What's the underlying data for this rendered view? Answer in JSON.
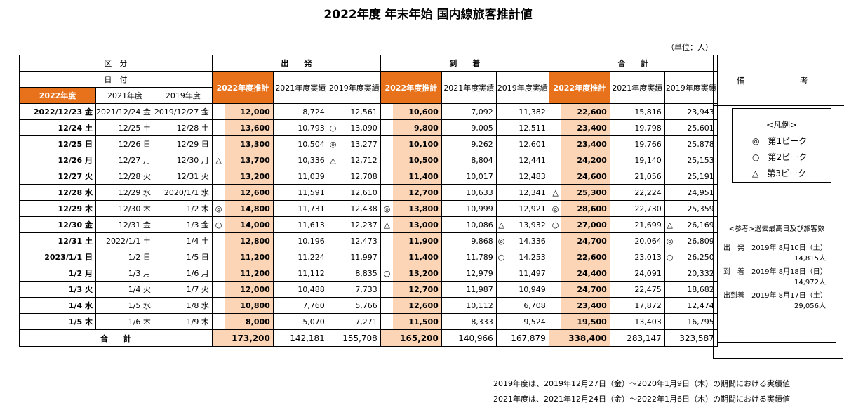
{
  "title": "2022年度 年末年始 国内線旅客推計値",
  "unit": "（単位：人）",
  "header": {
    "kubun": "区　分",
    "hiduke": "日　付",
    "col2022": "2022年度",
    "col2021": "2021年度",
    "col2019": "2019年度",
    "departure": "出　　発",
    "arrival": "到　　着",
    "total": "合　　計",
    "est2022": "2022年度推計",
    "act2021": "2021年度実績",
    "act2019": "2019年度実績",
    "remarks": "備　　考"
  },
  "rows": [
    {
      "d22": "2022/12/23 金",
      "d21": "2021/12/24 金",
      "d19": "2019/12/27 金",
      "m1": "",
      "dep22": "12,000",
      "dep21": "8,724",
      "m2": "",
      "dep19": "12,561",
      "m3": "",
      "arr22": "10,600",
      "arr21": "7,092",
      "m4": "",
      "arr19": "11,382",
      "m5": "",
      "tot22": "22,600",
      "tot21": "15,816",
      "m6": "",
      "tot19": "23,943"
    },
    {
      "d22": "12/24 土",
      "d21": "12/25 土",
      "d19": "12/28 土",
      "m1": "",
      "dep22": "13,600",
      "dep21": "10,793",
      "m2": "○",
      "dep19": "13,090",
      "m3": "",
      "arr22": "9,800",
      "arr21": "9,005",
      "m4": "",
      "arr19": "12,511",
      "m5": "",
      "tot22": "23,400",
      "tot21": "19,798",
      "m6": "",
      "tot19": "25,601"
    },
    {
      "d22": "12/25 日",
      "d21": "12/26 日",
      "d19": "12/29 日",
      "m1": "",
      "dep22": "13,300",
      "dep21": "10,504",
      "m2": "◎",
      "dep19": "13,277",
      "m3": "",
      "arr22": "10,100",
      "arr21": "9,262",
      "m4": "",
      "arr19": "12,601",
      "m5": "",
      "tot22": "23,400",
      "tot21": "19,766",
      "m6": "",
      "tot19": "25,878"
    },
    {
      "d22": "12/26 月",
      "d21": "12/27 月",
      "d19": "12/30 月",
      "m1": "△",
      "dep22": "13,700",
      "dep21": "10,336",
      "m2": "△",
      "dep19": "12,712",
      "m3": "",
      "arr22": "10,500",
      "arr21": "8,804",
      "m4": "",
      "arr19": "12,441",
      "m5": "",
      "tot22": "24,200",
      "tot21": "19,140",
      "m6": "",
      "tot19": "25,153"
    },
    {
      "d22": "12/27 火",
      "d21": "12/28 火",
      "d19": "12/31 火",
      "m1": "",
      "dep22": "13,200",
      "dep21": "11,039",
      "m2": "",
      "dep19": "12,708",
      "m3": "",
      "arr22": "11,400",
      "arr21": "10,017",
      "m4": "",
      "arr19": "12,483",
      "m5": "",
      "tot22": "24,600",
      "tot21": "21,056",
      "m6": "",
      "tot19": "25,191"
    },
    {
      "d22": "12/28 水",
      "d21": "12/29 水",
      "d19": "2020/1/1 水",
      "m1": "",
      "dep22": "12,600",
      "dep21": "11,591",
      "m2": "",
      "dep19": "12,610",
      "m3": "",
      "arr22": "12,700",
      "arr21": "10,633",
      "m4": "",
      "arr19": "12,341",
      "m5": "△",
      "tot22": "25,300",
      "tot21": "22,224",
      "m6": "",
      "tot19": "24,951"
    },
    {
      "d22": "12/29 木",
      "d21": "12/30 木",
      "d19": "1/2 木",
      "m1": "◎",
      "dep22": "14,800",
      "dep21": "11,731",
      "m2": "",
      "dep19": "12,438",
      "m3": "◎",
      "arr22": "13,800",
      "arr21": "10,999",
      "m4": "",
      "arr19": "12,921",
      "m5": "◎",
      "tot22": "28,600",
      "tot21": "22,730",
      "m6": "",
      "tot19": "25,359"
    },
    {
      "d22": "12/30 金",
      "d21": "12/31 金",
      "d19": "1/3 金",
      "m1": "○",
      "dep22": "14,000",
      "dep21": "11,613",
      "m2": "",
      "dep19": "12,237",
      "m3": "△",
      "arr22": "13,000",
      "arr21": "10,086",
      "m4": "△",
      "arr19": "13,932",
      "m5": "○",
      "tot22": "27,000",
      "tot21": "21,699",
      "m6": "△",
      "tot19": "26,169"
    },
    {
      "d22": "12/31 土",
      "d21": "2022/1/1 土",
      "d19": "1/4 土",
      "m1": "",
      "dep22": "12,800",
      "dep21": "10,196",
      "m2": "",
      "dep19": "12,473",
      "m3": "",
      "arr22": "11,900",
      "arr21": "9,868",
      "m4": "◎",
      "arr19": "14,336",
      "m5": "",
      "tot22": "24,700",
      "tot21": "20,064",
      "m6": "◎",
      "tot19": "26,809"
    },
    {
      "d22": "2023/1/1 日",
      "d21": "1/2 日",
      "d19": "1/5 日",
      "m1": "",
      "dep22": "11,200",
      "dep21": "11,224",
      "m2": "",
      "dep19": "11,997",
      "m3": "",
      "arr22": "11,400",
      "arr21": "11,789",
      "m4": "○",
      "arr19": "14,253",
      "m5": "",
      "tot22": "22,600",
      "tot21": "23,013",
      "m6": "○",
      "tot19": "26,250"
    },
    {
      "d22": "1/2 月",
      "d21": "1/3 月",
      "d19": "1/6 月",
      "m1": "",
      "dep22": "11,200",
      "dep21": "11,112",
      "m2": "",
      "dep19": "8,835",
      "m3": "○",
      "arr22": "13,200",
      "arr21": "12,979",
      "m4": "",
      "arr19": "11,497",
      "m5": "",
      "tot22": "24,400",
      "tot21": "24,091",
      "m6": "",
      "tot19": "20,332"
    },
    {
      "d22": "1/3 火",
      "d21": "1/4 火",
      "d19": "1/7 火",
      "m1": "",
      "dep22": "12,000",
      "dep21": "10,488",
      "m2": "",
      "dep19": "7,733",
      "m3": "",
      "arr22": "12,700",
      "arr21": "11,987",
      "m4": "",
      "arr19": "10,949",
      "m5": "",
      "tot22": "24,700",
      "tot21": "22,475",
      "m6": "",
      "tot19": "18,682"
    },
    {
      "d22": "1/4 水",
      "d21": "1/5 水",
      "d19": "1/8 水",
      "m1": "",
      "dep22": "10,800",
      "dep21": "7,760",
      "m2": "",
      "dep19": "5,766",
      "m3": "",
      "arr22": "12,600",
      "arr21": "10,112",
      "m4": "",
      "arr19": "6,708",
      "m5": "",
      "tot22": "23,400",
      "tot21": "17,872",
      "m6": "",
      "tot19": "12,474"
    },
    {
      "d22": "1/5 木",
      "d21": "1/6 木",
      "d19": "1/9 木",
      "m1": "",
      "dep22": "8,000",
      "dep21": "5,070",
      "m2": "",
      "dep19": "7,271",
      "m3": "",
      "arr22": "11,500",
      "arr21": "8,333",
      "m4": "",
      "arr19": "9,524",
      "m5": "",
      "tot22": "19,500",
      "tot21": "13,403",
      "m6": "",
      "tot19": "16,795"
    }
  ],
  "totals": {
    "label": "合　　計",
    "dep22": "173,200",
    "dep21": "142,181",
    "dep19": "155,708",
    "arr22": "165,200",
    "arr21": "140,966",
    "arr19": "167,879",
    "tot22": "338,400",
    "tot21": "283,147",
    "tot19": "323,587"
  },
  "legend": {
    "title": "<凡例>",
    "first": "◎　第1ピーク",
    "second": "○　第2ピーク",
    "third": "△　第3ピーク"
  },
  "reference": {
    "title": "<参考>過去最高日及び旅客数",
    "dep_label": "出　発　2019年 8月10日（土）",
    "dep_value": "14,815人",
    "arr_label": "到　着　2019年 8月18日（日）",
    "arr_value": "14,972人",
    "both_label": "出到着　2019年 8月17日（土）",
    "both_value": "29,056人"
  },
  "footnotes": [
    "2019年度は、2019年12月27日（金）～2020年1月9日（木）の期間における実績値",
    "2021年度は、2021年12月24日（金）～2022年1月6日（木）の期間における実績値"
  ]
}
